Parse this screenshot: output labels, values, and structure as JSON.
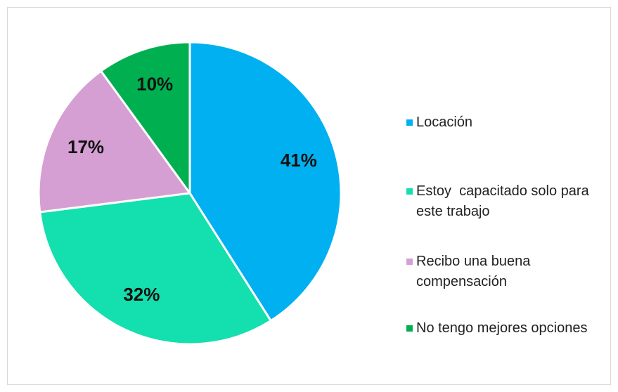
{
  "chart_data": {
    "type": "pie",
    "categories": [
      "Locación",
      "Estoy  capacitado solo para este trabajo",
      "Recibo una buena compensación",
      "No tengo mejores opciones"
    ],
    "values": [
      41,
      32,
      17,
      10
    ],
    "value_labels": [
      "41%",
      "32%",
      "17%",
      "10%"
    ],
    "colors": [
      "#00b0f0",
      "#14dfae",
      "#d59fd3",
      "#00b050"
    ],
    "legend": "right"
  }
}
